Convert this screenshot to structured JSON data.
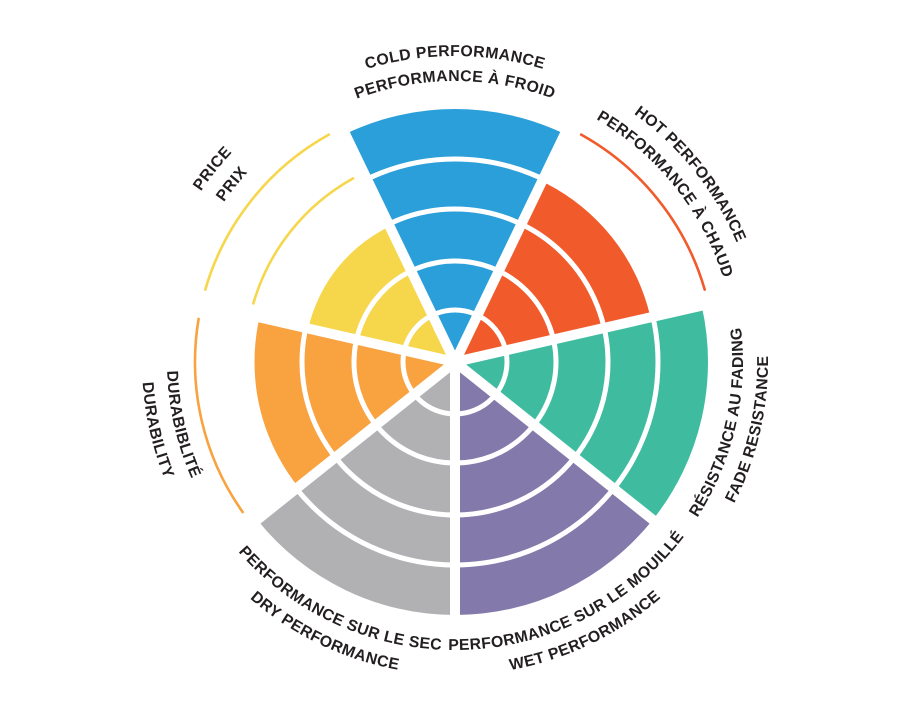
{
  "page": {
    "background": "#FFFFFF",
    "text_color": "#231F20"
  },
  "chart_data": {
    "type": "pie",
    "variant": "radial-rating-wheel",
    "title": "",
    "max_level": 5,
    "ring_count": 5,
    "ylim": [
      0,
      5
    ],
    "direction": "clockwise-from-top",
    "grid": "white concentric ring separators and white radial sector gaps",
    "legend_position": "none",
    "text_color": "#231F20",
    "categories": [
      {
        "id": "cold-performance",
        "label_en": "COLD PERFORMANCE",
        "label_fr": "PERFORMANCE À FROID",
        "value": 5,
        "color": "#2B9FD9",
        "label_flipped": false,
        "empty_ring_arcs": 0
      },
      {
        "id": "hot-performance",
        "label_en": "HOT PERFORMANCE",
        "label_fr": "PERFORMANCE À CHAUD",
        "value": 4,
        "color": "#F15B2C",
        "label_flipped": false,
        "empty_ring_arcs": 1
      },
      {
        "id": "fade-resistance",
        "label_en": "FADE RESISTANCE",
        "label_fr": "RÉSISTANCE AU FADING",
        "value": 5,
        "color": "#3FBCA0",
        "label_flipped": true,
        "empty_ring_arcs": 0
      },
      {
        "id": "wet-performance",
        "label_en": "WET PERFORMANCE",
        "label_fr": "PERFORMANCE SUR LE MOUILLÉ",
        "value": 5,
        "color": "#8379AB",
        "label_flipped": true,
        "empty_ring_arcs": 0
      },
      {
        "id": "dry-performance",
        "label_en": "DRY PERFORMANCE",
        "label_fr": "PERFORMANCE SUR LE SEC",
        "value": 5,
        "color": "#B1B1B4",
        "label_flipped": true,
        "empty_ring_arcs": 0
      },
      {
        "id": "durability",
        "label_en": "DURABILITY",
        "label_fr": "DURABIBLITÉ",
        "value": 4,
        "color": "#F9A240",
        "label_flipped": true,
        "empty_ring_arcs": 1
      },
      {
        "id": "price",
        "label_en": "PRICE",
        "label_fr": "PRIX",
        "value": 3,
        "color": "#F6D64B",
        "label_flipped": false,
        "empty_ring_arcs": 2
      }
    ],
    "annotation": "Thin colored arcs outside the fill mark unreached rating rings (hot: ring 5, durability: ring 5, price: rings 4 and 5)."
  }
}
